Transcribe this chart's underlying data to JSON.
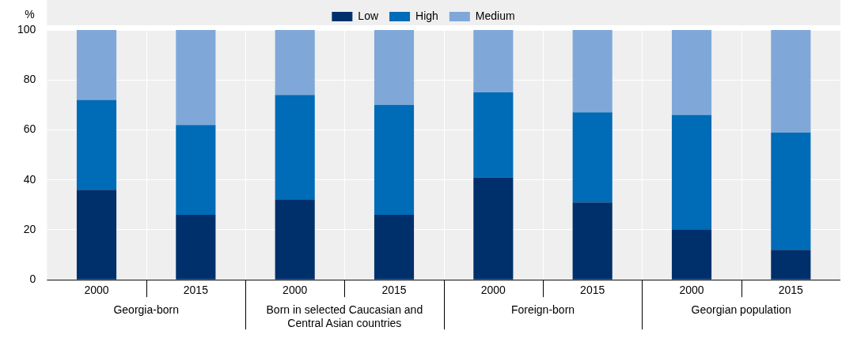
{
  "chart_data": {
    "type": "bar",
    "stacked": true,
    "ylabel": "%",
    "categories": [
      "2000",
      "2015",
      "2000",
      "2015",
      "2000",
      "2015",
      "2000",
      "2015"
    ],
    "annotations": [
      "Georgia-born",
      "Born in selected Caucasian and Central Asian countries",
      "Foreign-born",
      "Georgian population"
    ],
    "series": [
      {
        "name": "Low",
        "color": "#00306b",
        "values": [
          36,
          26,
          32,
          26,
          41,
          31,
          20,
          12
        ]
      },
      {
        "name": "High",
        "color": "#006bb6",
        "values": [
          36,
          36,
          42,
          44,
          34,
          36,
          46,
          47
        ]
      },
      {
        "name": "Medium",
        "color": "#7fa8d9",
        "values": [
          28,
          38,
          26,
          30,
          25,
          33,
          34,
          41
        ]
      }
    ],
    "ylim": [
      0,
      100
    ],
    "yticks": [
      0,
      20,
      40,
      60,
      80,
      100
    ],
    "grid": "y",
    "legend": "top"
  }
}
